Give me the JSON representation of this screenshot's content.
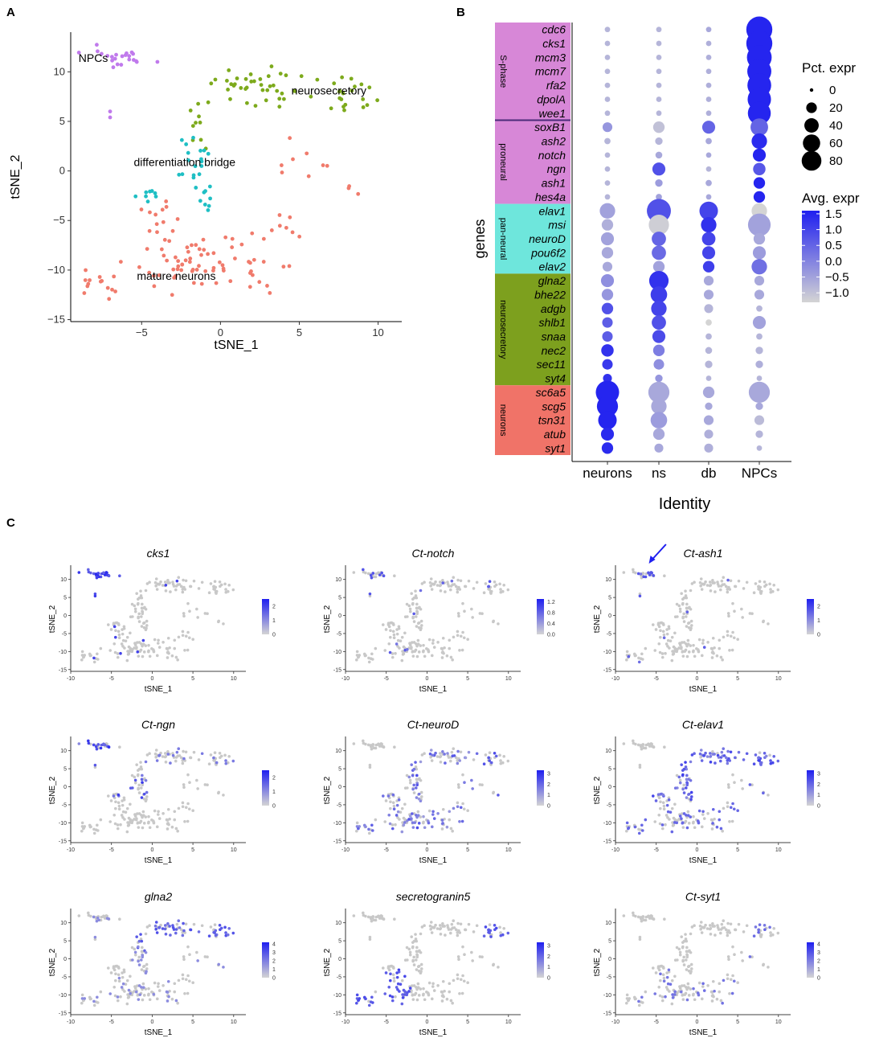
{
  "panels": {
    "a": "A",
    "b": "B",
    "c": "C"
  },
  "colors": {
    "neurons": "#F07B6C",
    "ns": "#7DAA1C",
    "db": "#1FBFC4",
    "NPCs": "#C07AEC",
    "low": "#D4D4D4",
    "high": "#1F1FF0",
    "grey": "#C8C8C8"
  },
  "chart_data": [
    {
      "id": "A",
      "type": "scatter",
      "title": "",
      "xlabel": "tSNE_1",
      "ylabel": "tSNE_2",
      "xlim": [
        -9.5,
        11.5
      ],
      "ylim": [
        -15.2,
        14
      ],
      "xticks": [
        -5,
        0,
        5,
        10
      ],
      "yticks": [
        -15,
        -10,
        -5,
        0,
        5,
        10
      ],
      "xtick_labels": [
        "−5",
        "0",
        "5",
        "10"
      ],
      "ytick_labels": [
        "−15",
        "−10",
        "−5",
        "0",
        "5",
        "10"
      ],
      "clusters": [
        {
          "name": "NPCs",
          "label": "NPCs",
          "color_key": "NPCs",
          "label_pos": [
            -9,
            11
          ]
        },
        {
          "name": "neurosecretory",
          "label": "neurosecretory",
          "color_key": "ns",
          "label_pos": [
            4.5,
            7.7
          ]
        },
        {
          "name": "differentiation bridge",
          "label": "differentiation bridge",
          "color_key": "db",
          "label_pos": [
            -5.5,
            0.5
          ]
        },
        {
          "name": "mature neurons",
          "label": "mature neurons",
          "color_key": "neurons",
          "label_pos": [
            -5.3,
            -11
          ]
        }
      ]
    },
    {
      "id": "B",
      "type": "dot",
      "xlabel": "Identity",
      "ylabel": "genes",
      "categories": [
        "neurons",
        "ns",
        "db",
        "NPCs"
      ],
      "genes": [
        "cdc6",
        "cks1",
        "mcm3",
        "mcm7",
        "rfa2",
        "dpolA",
        "wee1",
        "soxB1",
        "ash2",
        "notch",
        "ngn",
        "ash1",
        "hes4a",
        "elav1",
        "msi",
        "neuroD",
        "pou6f2",
        "elav2",
        "glna2",
        "bhe22",
        "adgb",
        "shlb1",
        "snaa",
        "nec2",
        "sec11",
        "syt4",
        "sc6a5",
        "scg5",
        "tsn31",
        "atub",
        "syt1"
      ],
      "groups": [
        {
          "label": "S-phase",
          "start": 0,
          "end": 6,
          "color": "#D787D7"
        },
        {
          "label": "proneural",
          "start": 7,
          "end": 12,
          "color": "#D787D7"
        },
        {
          "label": "pan-neural",
          "start": 13,
          "end": 17,
          "color": "#6EE6DC"
        },
        {
          "label": "neurosecretory",
          "start": 18,
          "end": 25,
          "color": "#7DA01E"
        },
        {
          "label": "neurons",
          "start": 26,
          "end": 30,
          "color": "#F07368"
        }
      ],
      "pct_expr": [
        [
          2,
          2,
          2,
          95
        ],
        [
          2,
          2,
          2,
          95
        ],
        [
          2,
          2,
          2,
          85
        ],
        [
          2,
          2,
          2,
          80
        ],
        [
          2,
          2,
          2,
          78
        ],
        [
          2,
          2,
          2,
          75
        ],
        [
          2,
          2,
          2,
          72
        ],
        [
          10,
          15,
          20,
          40
        ],
        [
          3,
          5,
          3,
          30
        ],
        [
          2,
          4,
          2,
          20
        ],
        [
          2,
          20,
          2,
          18
        ],
        [
          2,
          5,
          3,
          15
        ],
        [
          2,
          3,
          2,
          15
        ],
        [
          30,
          80,
          45,
          30
        ],
        [
          15,
          55,
          30,
          70
        ],
        [
          20,
          25,
          22,
          15
        ],
        [
          15,
          25,
          20,
          20
        ],
        [
          10,
          15,
          15,
          30
        ],
        [
          20,
          50,
          10,
          10
        ],
        [
          15,
          35,
          10,
          10
        ],
        [
          15,
          30,
          8,
          3
        ],
        [
          12,
          25,
          3,
          20
        ],
        [
          12,
          20,
          3,
          3
        ],
        [
          18,
          15,
          4,
          5
        ],
        [
          12,
          12,
          5,
          5
        ],
        [
          8,
          5,
          2,
          2
        ],
        [
          75,
          60,
          15,
          60
        ],
        [
          60,
          30,
          5,
          5
        ],
        [
          45,
          35,
          10,
          10
        ],
        [
          20,
          15,
          8,
          5
        ],
        [
          15,
          8,
          8,
          2
        ]
      ],
      "avg_expr": [
        [
          -0.8,
          -0.8,
          -0.6,
          1.5
        ],
        [
          -0.8,
          -0.8,
          -0.7,
          1.5
        ],
        [
          -0.8,
          -0.8,
          -0.7,
          1.5
        ],
        [
          -0.8,
          -0.8,
          -0.7,
          1.5
        ],
        [
          -0.8,
          -0.8,
          -0.7,
          1.5
        ],
        [
          -0.8,
          -0.8,
          -0.7,
          1.5
        ],
        [
          -0.8,
          -0.8,
          -0.7,
          1.5
        ],
        [
          -0.3,
          -1.0,
          0.5,
          0.5
        ],
        [
          -0.8,
          -0.8,
          -0.6,
          1.4
        ],
        [
          -0.8,
          -0.6,
          -0.6,
          1.5
        ],
        [
          -0.8,
          0.8,
          -0.8,
          0.7
        ],
        [
          -0.8,
          -0.4,
          -0.6,
          1.5
        ],
        [
          -0.8,
          -0.5,
          -0.6,
          1.5
        ],
        [
          -0.5,
          0.8,
          1.0,
          -1.3
        ],
        [
          -0.7,
          -1.2,
          1.3,
          -0.5
        ],
        [
          -0.5,
          0.5,
          1.0,
          -0.6
        ],
        [
          -0.6,
          0.4,
          1.0,
          -0.4
        ],
        [
          -0.6,
          -0.5,
          1.1,
          0.3
        ],
        [
          -0.2,
          1.3,
          -0.6,
          -0.6
        ],
        [
          -0.3,
          1.1,
          -0.6,
          -0.6
        ],
        [
          0.8,
          1.0,
          -0.8,
          -0.8
        ],
        [
          0.6,
          0.8,
          -1.3,
          -0.5
        ],
        [
          0.6,
          0.9,
          -0.8,
          -0.8
        ],
        [
          1.3,
          0.1,
          -0.8,
          -0.8
        ],
        [
          1.2,
          -0.2,
          -0.8,
          -0.7
        ],
        [
          1.3,
          -0.3,
          -0.8,
          -0.8
        ],
        [
          1.5,
          -0.6,
          -0.6,
          -0.6
        ],
        [
          1.5,
          -0.6,
          -0.6,
          -0.6
        ],
        [
          1.5,
          -0.4,
          -0.6,
          -0.9
        ],
        [
          1.4,
          -0.6,
          -0.7,
          -0.8
        ],
        [
          1.4,
          -0.6,
          -0.7,
          -0.8
        ]
      ],
      "size_legend": {
        "title": "Pct. expr",
        "values": [
          0,
          20,
          40,
          60,
          80
        ]
      },
      "color_legend": {
        "title": "Avg. expr",
        "range": [
          -1.3,
          1.6
        ],
        "ticks": [
          1.5,
          1.0,
          0.5,
          0.0,
          -0.5,
          -1.0
        ],
        "tick_labels": [
          "1.5",
          "1.0",
          "0.5",
          "0.0",
          "−0.5",
          "−1.0"
        ]
      }
    },
    {
      "id": "C",
      "type": "scatter-feature",
      "xlabel": "tSNE_1",
      "ylabel": "tSNE_2",
      "xticks": [
        -10,
        -5,
        0,
        5,
        10
      ],
      "yticks": [
        -15,
        -10,
        -5,
        0,
        5,
        10
      ],
      "xtick_labels": [
        "-10",
        "-5",
        "0",
        "5",
        "10"
      ],
      "ytick_labels": [
        "-15",
        "-10",
        "-5",
        "0",
        "5",
        "10"
      ],
      "features": [
        {
          "title": "cks1",
          "scale": [
            0,
            2.5
          ],
          "ticks": [
            0,
            1,
            2
          ],
          "tick_labels": [
            "0",
            "1",
            "2"
          ],
          "marker": "npc"
        },
        {
          "title": "Ct-notch",
          "scale": [
            0,
            1.3
          ],
          "ticks": [
            0,
            0.4,
            0.8,
            1.2
          ],
          "tick_labels": [
            "0.0",
            "0.4",
            "0.8",
            "1.2"
          ],
          "marker": "sparse"
        },
        {
          "title": "Ct-ash1",
          "scale": [
            0,
            2.5
          ],
          "ticks": [
            0,
            1,
            2
          ],
          "tick_labels": [
            "0",
            "1",
            "2"
          ],
          "marker": "sparse",
          "arrow": true
        },
        {
          "title": "Ct-ngn",
          "scale": [
            0,
            2.5
          ],
          "ticks": [
            0,
            1,
            2
          ],
          "tick_labels": [
            "0",
            "1",
            "2"
          ],
          "marker": "db"
        },
        {
          "title": "Ct-neuroD",
          "scale": [
            0,
            3.3
          ],
          "ticks": [
            0,
            1,
            2,
            3
          ],
          "tick_labels": [
            "0",
            "1",
            "2",
            "3"
          ],
          "marker": "broad"
        },
        {
          "title": "Ct-elav1",
          "scale": [
            0,
            3.3
          ],
          "ticks": [
            0,
            1,
            2,
            3
          ],
          "tick_labels": [
            "0",
            "1",
            "2",
            "3"
          ],
          "marker": "pan"
        },
        {
          "title": "glna2",
          "scale": [
            0,
            4.2
          ],
          "ticks": [
            0,
            1,
            2,
            3,
            4
          ],
          "tick_labels": [
            "0",
            "1",
            "2",
            "3",
            "4"
          ],
          "marker": "ns"
        },
        {
          "title": "secretogranin5",
          "scale": [
            0,
            3.3
          ],
          "ticks": [
            0,
            1,
            2,
            3
          ],
          "tick_labels": [
            "0",
            "1",
            "2",
            "3"
          ],
          "marker": "neuron"
        },
        {
          "title": "Ct-syt1",
          "scale": [
            0,
            4.2
          ],
          "ticks": [
            0,
            1,
            2,
            3,
            4
          ],
          "tick_labels": [
            "0",
            "1",
            "2",
            "3",
            "4"
          ],
          "marker": "neuron-light"
        }
      ]
    }
  ]
}
